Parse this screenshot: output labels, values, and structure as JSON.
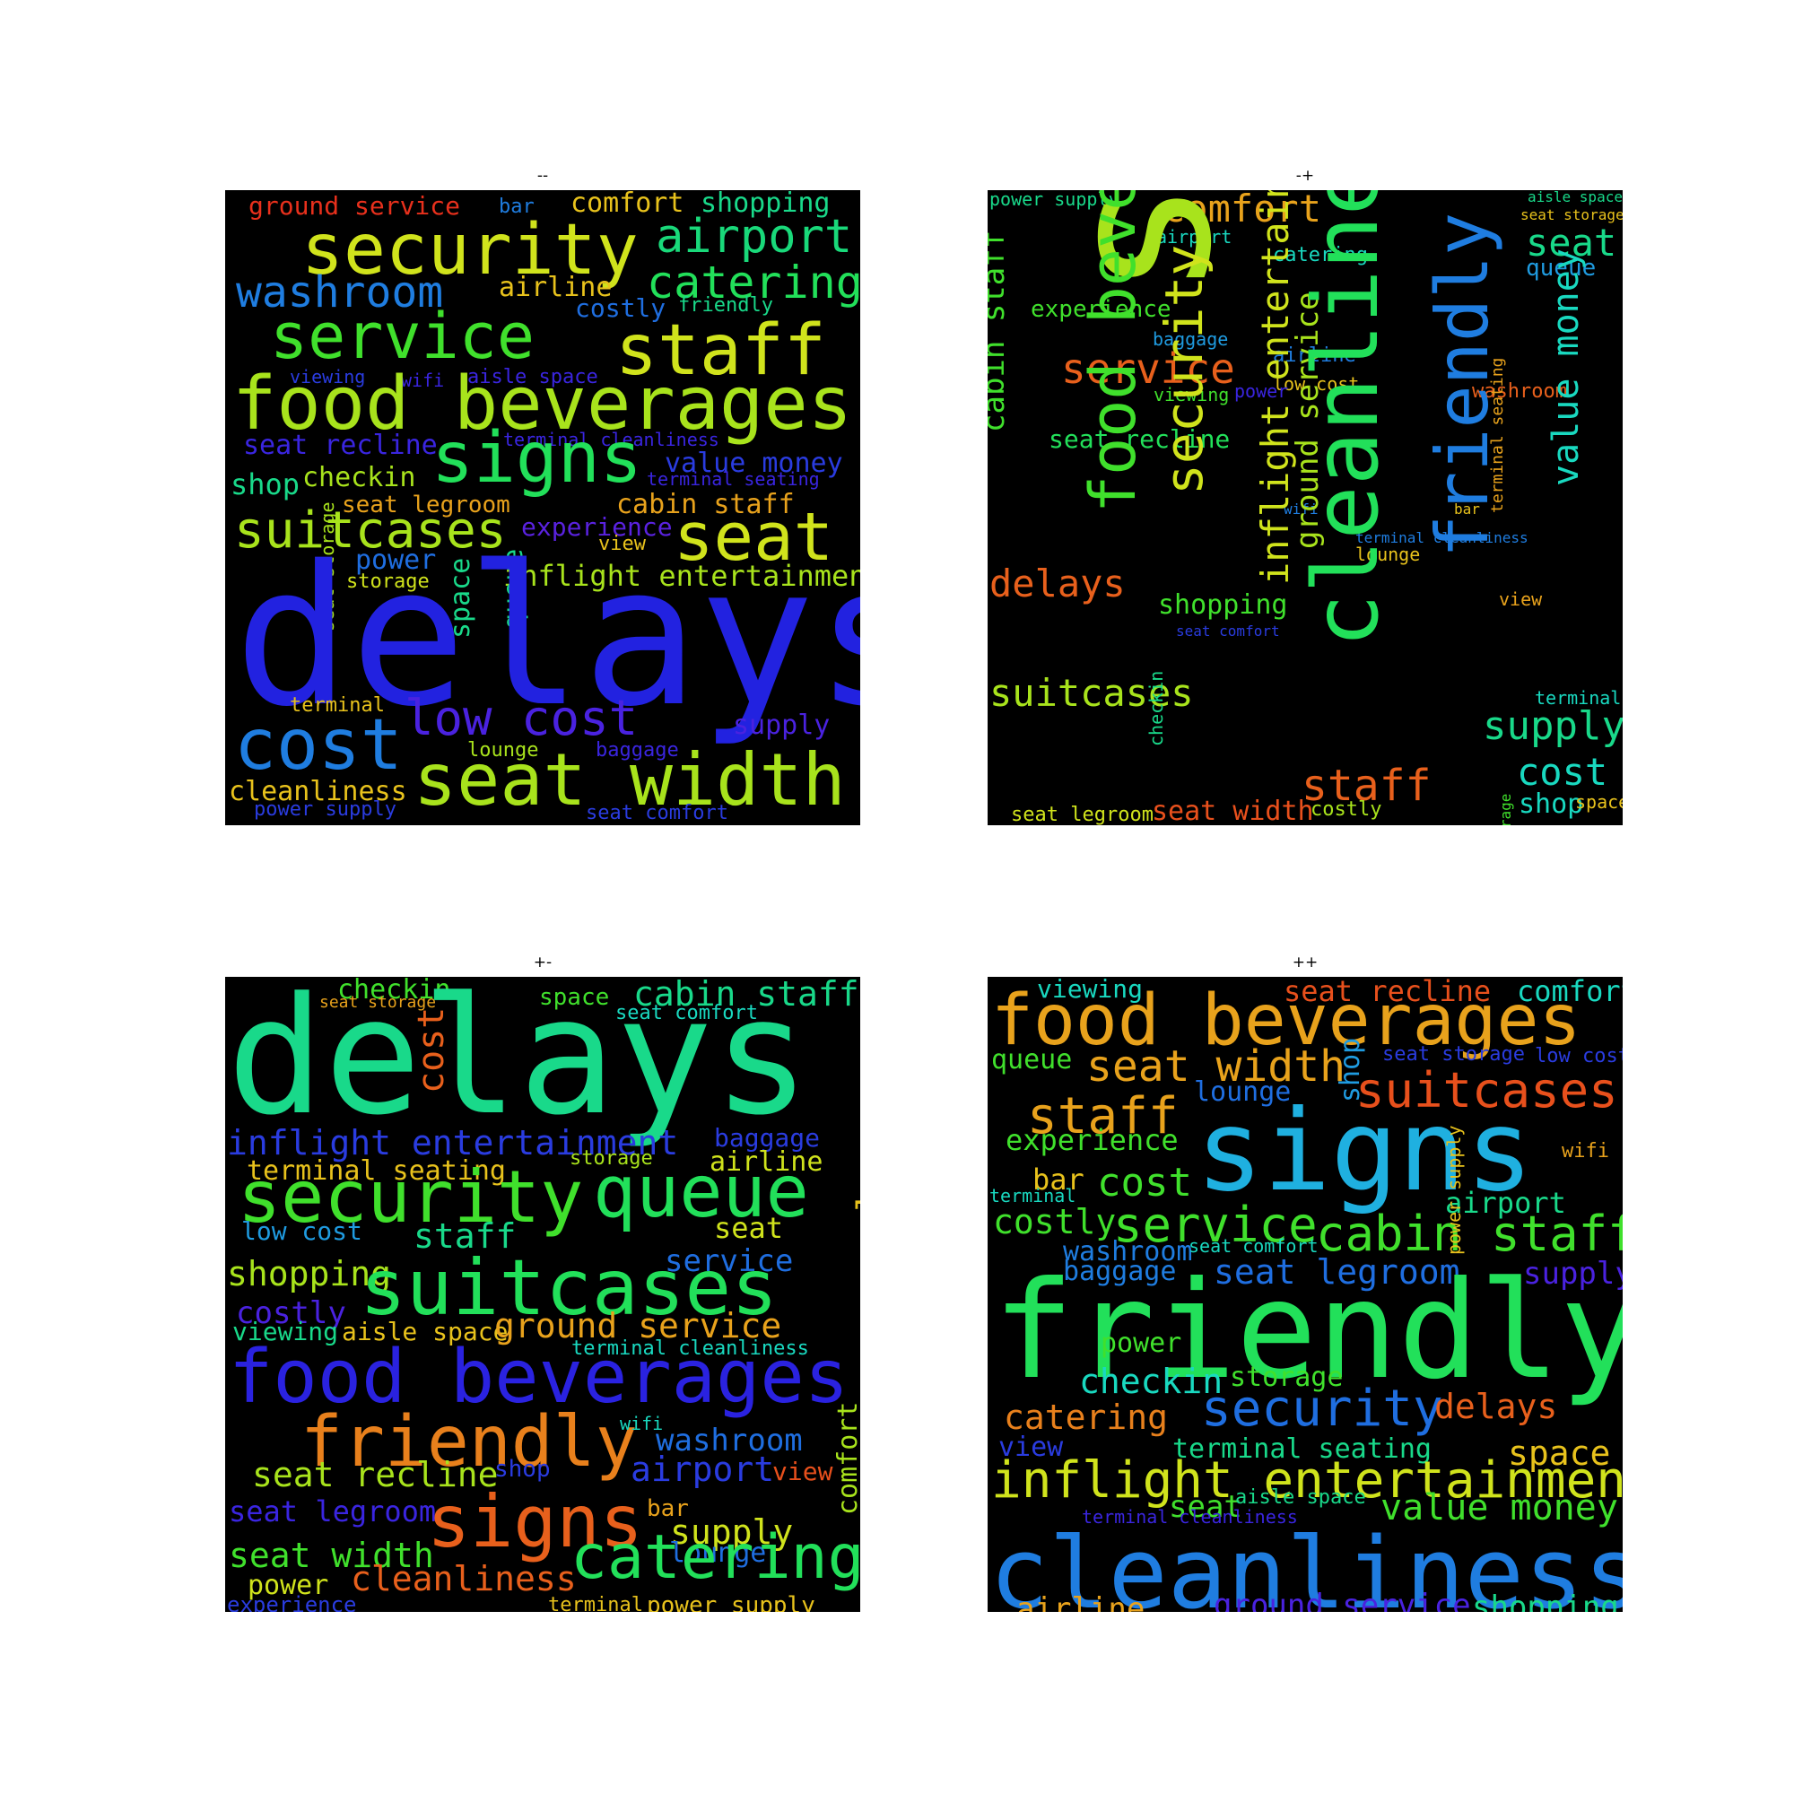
{
  "panels": [
    {
      "title": "--",
      "words": [
        {
          "text": "ground service",
          "color": "#e8301c"
        },
        {
          "text": "bar",
          "color": "#1f7de0"
        },
        {
          "text": "comfort",
          "color": "#e8c21c"
        },
        {
          "text": "shopping",
          "color": "#19d98a"
        },
        {
          "text": "security",
          "color": "#d0e31c"
        },
        {
          "text": "airport",
          "color": "#19d97a"
        },
        {
          "text": "washroom",
          "color": "#1f7de0"
        },
        {
          "text": "airline",
          "color": "#e8c21c"
        },
        {
          "text": "catering",
          "color": "#22e05a"
        },
        {
          "text": "costly",
          "color": "#1f6ee0"
        },
        {
          "text": "friendly",
          "color": "#19d98a"
        },
        {
          "text": "service",
          "color": "#40e02c"
        },
        {
          "text": "staff",
          "color": "#d0e31c"
        },
        {
          "text": "viewing",
          "color": "#2a3ce0"
        },
        {
          "text": "wifi",
          "color": "#3a25e0"
        },
        {
          "text": "aisle space",
          "color": "#3a25e0"
        },
        {
          "text": "food beverages",
          "color": "#a8e31c"
        },
        {
          "text": "seat recline",
          "color": "#3a25e0"
        },
        {
          "text": "terminal cleanliness",
          "color": "#3a25e0"
        },
        {
          "text": "signs",
          "color": "#22e05a"
        },
        {
          "text": "value money",
          "color": "#2a3ce0"
        },
        {
          "text": "shop",
          "color": "#19d98a"
        },
        {
          "text": "checkin",
          "color": "#a8e31c"
        },
        {
          "text": "terminal seating",
          "color": "#3a25e0"
        },
        {
          "text": "seat legroom",
          "color": "#e8a21c"
        },
        {
          "text": "cabin staff",
          "color": "#e8a21c"
        },
        {
          "text": "suitcases",
          "color": "#a8e31c"
        },
        {
          "text": "experience",
          "color": "#5a22e0"
        },
        {
          "text": "seat",
          "color": "#d0e31c"
        },
        {
          "text": "power",
          "color": "#1f6ee0"
        },
        {
          "text": "view",
          "color": "#e8c21c"
        },
        {
          "text": "storage",
          "color": "#d0e31c"
        },
        {
          "text": "inflight entertainment",
          "color": "#a8e31c"
        },
        {
          "text": "seat storage",
          "color": "#a8e31c"
        },
        {
          "text": "space",
          "color": "#19d98a"
        },
        {
          "text": "queue",
          "color": "#19d98a"
        },
        {
          "text": "delays",
          "color": "#2222e0"
        },
        {
          "text": "terminal",
          "color": "#e8c21c"
        },
        {
          "text": "cost",
          "color": "#1f7de0"
        },
        {
          "text": "low cost",
          "color": "#4a22e0"
        },
        {
          "text": "supply",
          "color": "#4a22e0"
        },
        {
          "text": "lounge",
          "color": "#a8e31c"
        },
        {
          "text": "baggage",
          "color": "#3a25e0"
        },
        {
          "text": "cleanliness",
          "color": "#e8c21c"
        },
        {
          "text": "seat width",
          "color": "#a8e31c"
        },
        {
          "text": "power supply",
          "color": "#2a3ce0"
        },
        {
          "text": "seat comfort",
          "color": "#2a3ce0"
        }
      ]
    },
    {
      "title": "-+",
      "words": [
        {
          "text": "power supply",
          "color": "#19d98a"
        },
        {
          "text": "aisle space",
          "color": "#19d98a"
        },
        {
          "text": "comfort",
          "color": "#e8a21c"
        },
        {
          "text": "seat storage",
          "color": "#e8c21c"
        },
        {
          "text": "airport",
          "color": "#19d9c0"
        },
        {
          "text": "catering",
          "color": "#19d9c0"
        },
        {
          "text": "seat",
          "color": "#19d98a"
        },
        {
          "text": "queue",
          "color": "#1f9be0"
        },
        {
          "text": "experience",
          "color": "#40e02c"
        },
        {
          "text": "baggage",
          "color": "#1f9be0"
        },
        {
          "text": "airline",
          "color": "#1f7de0"
        },
        {
          "text": "service",
          "color": "#e8601c"
        },
        {
          "text": "low cost",
          "color": "#e8c21c"
        },
        {
          "text": "viewing",
          "color": "#40e02c"
        },
        {
          "text": "power",
          "color": "#3a25e0"
        },
        {
          "text": "washroom",
          "color": "#e8601c"
        },
        {
          "text": "seat recline",
          "color": "#22e05a"
        },
        {
          "text": "wifi",
          "color": "#1f7de0"
        },
        {
          "text": "bar",
          "color": "#e8c21c"
        },
        {
          "text": "terminal cleanliness",
          "color": "#1f7de0"
        },
        {
          "text": "delays",
          "color": "#e8601c"
        },
        {
          "text": "lounge",
          "color": "#e8c21c"
        },
        {
          "text": "view",
          "color": "#e8a21c"
        },
        {
          "text": "shopping",
          "color": "#40e02c"
        },
        {
          "text": "seat comfort",
          "color": "#2a3ce0"
        },
        {
          "text": "suitcases",
          "color": "#a8e31c"
        },
        {
          "text": "supply",
          "color": "#19d98a"
        },
        {
          "text": "terminal",
          "color": "#19d9c0"
        },
        {
          "text": "cost",
          "color": "#19d9c0"
        },
        {
          "text": "staff",
          "color": "#e8601c"
        },
        {
          "text": "shop",
          "color": "#19d9c0"
        },
        {
          "text": "space",
          "color": "#e8c21c"
        },
        {
          "text": "seat legroom",
          "color": "#d0e31c"
        },
        {
          "text": "seat width",
          "color": "#e8501c"
        },
        {
          "text": "costly",
          "color": "#a8e31c"
        },
        {
          "text": "signs",
          "color": "#a8e31c"
        },
        {
          "text": "cabin staff",
          "color": "#40e02c"
        },
        {
          "text": "food beverages",
          "color": "#40e02c"
        },
        {
          "text": "security",
          "color": "#d0e31c"
        },
        {
          "text": "checkin",
          "color": "#19d98a"
        },
        {
          "text": "inflight entertainment",
          "color": "#d0e31c"
        },
        {
          "text": "ground service",
          "color": "#a8e31c"
        },
        {
          "text": "cleanliness",
          "color": "#22e05a"
        },
        {
          "text": "terminal seating",
          "color": "#e8a21c"
        },
        {
          "text": "friendly",
          "color": "#1f7de0"
        },
        {
          "text": "value money",
          "color": "#19d9c0"
        },
        {
          "text": "storage",
          "color": "#40e02c"
        }
      ]
    },
    {
      "title": "+-",
      "words": [
        {
          "text": "checkin",
          "color": "#40e02c"
        },
        {
          "text": "seat storage",
          "color": "#e8a21c"
        },
        {
          "text": "space",
          "color": "#40e02c"
        },
        {
          "text": "cabin staff",
          "color": "#19d98a"
        },
        {
          "text": "seat comfort",
          "color": "#19d9c0"
        },
        {
          "text": "delays",
          "color": "#19d98a"
        },
        {
          "text": "cost",
          "color": "#e8601c"
        },
        {
          "text": "inflight entertainment",
          "color": "#2a3ce0"
        },
        {
          "text": "baggage",
          "color": "#2a3ce0"
        },
        {
          "text": "storage",
          "color": "#a8e31c"
        },
        {
          "text": "terminal seating",
          "color": "#e8c21c"
        },
        {
          "text": "airline",
          "color": "#d0e31c"
        },
        {
          "text": "security",
          "color": "#40e02c"
        },
        {
          "text": "queue",
          "color": "#22e05a"
        },
        {
          "text": "value money",
          "color": "#e8c21c"
        },
        {
          "text": "low cost",
          "color": "#1f9be0"
        },
        {
          "text": "staff",
          "color": "#19d98a"
        },
        {
          "text": "seat",
          "color": "#d0e31c"
        },
        {
          "text": "service",
          "color": "#1f6ee0"
        },
        {
          "text": "shopping",
          "color": "#a8e31c"
        },
        {
          "text": "suitcases",
          "color": "#22e05a"
        },
        {
          "text": "costly",
          "color": "#4a22e0"
        },
        {
          "text": "viewing",
          "color": "#19d98a"
        },
        {
          "text": "aisle space",
          "color": "#e8c21c"
        },
        {
          "text": "ground service",
          "color": "#e8a21c"
        },
        {
          "text": "terminal cleanliness",
          "color": "#19d9c0"
        },
        {
          "text": "food beverages",
          "color": "#2a22e0"
        },
        {
          "text": "friendly",
          "color": "#e8801c"
        },
        {
          "text": "wifi",
          "color": "#19d9c0"
        },
        {
          "text": "washroom",
          "color": "#1f6ee0"
        },
        {
          "text": "seat recline",
          "color": "#a8e31c"
        },
        {
          "text": "shop",
          "color": "#2a3ce0"
        },
        {
          "text": "airport",
          "color": "#2a3ce0"
        },
        {
          "text": "view",
          "color": "#e8501c"
        },
        {
          "text": "comfort",
          "color": "#a8e31c"
        },
        {
          "text": "seat legroom",
          "color": "#3a25e0"
        },
        {
          "text": "signs",
          "color": "#e8601c"
        },
        {
          "text": "bar",
          "color": "#e8a21c"
        },
        {
          "text": "supply",
          "color": "#d0e31c"
        },
        {
          "text": "lounge",
          "color": "#1f6ee0"
        },
        {
          "text": "seat width",
          "color": "#40e02c"
        },
        {
          "text": "power",
          "color": "#d0e31c"
        },
        {
          "text": "cleanliness",
          "color": "#e8601c"
        },
        {
          "text": "catering",
          "color": "#22e05a"
        },
        {
          "text": "experience",
          "color": "#2a3ce0"
        },
        {
          "text": "terminal",
          "color": "#e8c21c"
        },
        {
          "text": "power supply",
          "color": "#e8c21c"
        }
      ]
    },
    {
      "title": "++",
      "words": [
        {
          "text": "viewing",
          "color": "#19d9c0"
        },
        {
          "text": "seat recline",
          "color": "#e8501c"
        },
        {
          "text": "comfort",
          "color": "#19d9c0"
        },
        {
          "text": "food beverages",
          "color": "#e8a21c"
        },
        {
          "text": "queue",
          "color": "#40e02c"
        },
        {
          "text": "seat width",
          "color": "#e8a21c"
        },
        {
          "text": "seat storage",
          "color": "#2a3ce0"
        },
        {
          "text": "low cost",
          "color": "#2a3ce0"
        },
        {
          "text": "lounge",
          "color": "#1f6ee0"
        },
        {
          "text": "shop",
          "color": "#1f9be0"
        },
        {
          "text": "suitcases",
          "color": "#e8501c"
        },
        {
          "text": "staff",
          "color": "#e8a21c"
        },
        {
          "text": "experience",
          "color": "#40e02c"
        },
        {
          "text": "signs",
          "color": "#1fb0e0"
        },
        {
          "text": "wifi",
          "color": "#e8a21c"
        },
        {
          "text": "bar",
          "color": "#e8c21c"
        },
        {
          "text": "cost",
          "color": "#40e02c"
        },
        {
          "text": "terminal",
          "color": "#19d9c0"
        },
        {
          "text": "airport",
          "color": "#19d98a"
        },
        {
          "text": "costly",
          "color": "#40e02c"
        },
        {
          "text": "service",
          "color": "#40e02c"
        },
        {
          "text": "cabin staff",
          "color": "#40e02c"
        },
        {
          "text": "washroom",
          "color": "#1f7de0"
        },
        {
          "text": "seat comfort",
          "color": "#19d9c0"
        },
        {
          "text": "power supply",
          "color": "#e8c21c"
        },
        {
          "text": "baggage",
          "color": "#1f7de0"
        },
        {
          "text": "seat legroom",
          "color": "#1f6ee0"
        },
        {
          "text": "supply",
          "color": "#4a22e0"
        },
        {
          "text": "friendly",
          "color": "#22e05a"
        },
        {
          "text": "power",
          "color": "#40e02c"
        },
        {
          "text": "checkin",
          "color": "#19d9c0"
        },
        {
          "text": "storage",
          "color": "#40e02c"
        },
        {
          "text": "security",
          "color": "#1f6ee0"
        },
        {
          "text": "delays",
          "color": "#e8601c"
        },
        {
          "text": "catering",
          "color": "#e8801c"
        },
        {
          "text": "view",
          "color": "#2a3ce0"
        },
        {
          "text": "terminal seating",
          "color": "#19d98a"
        },
        {
          "text": "space",
          "color": "#e8c21c"
        },
        {
          "text": "inflight entertainment",
          "color": "#d0e31c"
        },
        {
          "text": "seat",
          "color": "#40e02c"
        },
        {
          "text": "aisle space",
          "color": "#19d98a"
        },
        {
          "text": "value money",
          "color": "#40e02c"
        },
        {
          "text": "terminal cleanliness",
          "color": "#3a25e0"
        },
        {
          "text": "cleanliness",
          "color": "#1f7de0"
        },
        {
          "text": "airline",
          "color": "#e8a21c"
        },
        {
          "text": "ground service",
          "color": "#4a22e0"
        },
        {
          "text": "shopping",
          "color": "#19d98a"
        }
      ]
    }
  ]
}
